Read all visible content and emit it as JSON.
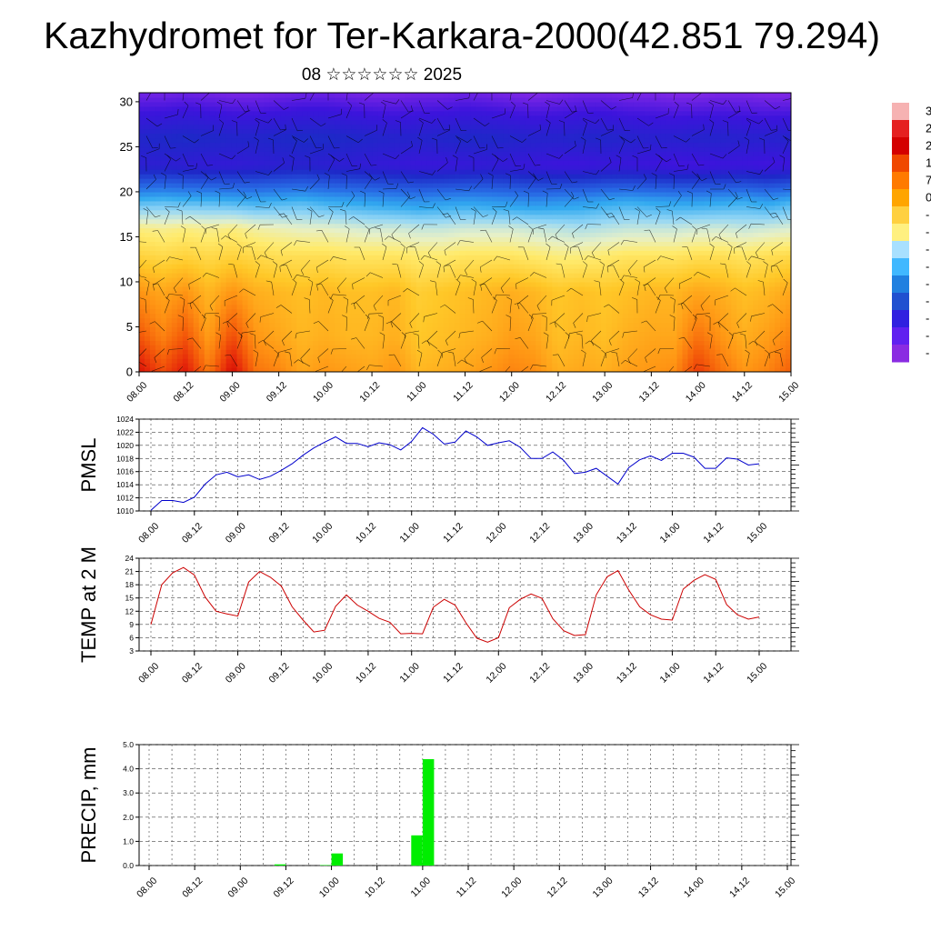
{
  "page": {
    "title": "Kazhydromet for Ter-Karkara-2000(42.851 79.294)",
    "subtitle": "08 ☆☆☆☆☆☆ 2025"
  },
  "chart_data": [
    {
      "type": "heatmap",
      "title": "",
      "ylim": [
        0,
        31
      ],
      "yticks": [
        "0",
        "5",
        "10",
        "15",
        "20",
        "25",
        "30"
      ],
      "xticks": [
        "08.00",
        "08.12",
        "09.00",
        "09.12",
        "10.00",
        "10.12",
        "11.00",
        "11.12",
        "12.00",
        "12.12",
        "13.00",
        "13.12",
        "14.00",
        "14.12",
        "15.00"
      ],
      "overlay": "wind barbs",
      "colorbar": {
        "labels": [
          "3",
          "2",
          "2",
          "1",
          "7",
          "0",
          "-",
          "-",
          "-",
          "-",
          "-",
          "-",
          "-",
          "-",
          "-"
        ],
        "colors": [
          "#f6b2b2",
          "#e52020",
          "#d40000",
          "#f04800",
          "#ff7a00",
          "#ffa500",
          "#ffd040",
          "#fff080",
          "#a8e0ff",
          "#40b8ff",
          "#2080e0",
          "#2050d0",
          "#3020e0",
          "#6020f0",
          "#8a2be2"
        ]
      },
      "rows": [
        {
          "level": 0,
          "values": [
            27,
            20,
            26,
            15,
            28,
            16,
            14,
            10,
            12,
            11,
            10,
            12,
            8,
            9,
            10,
            12,
            14,
            13,
            9,
            10,
            9,
            11,
            12,
            13,
            22,
            16,
            12,
            14,
            18
          ]
        },
        {
          "level": 4,
          "values": [
            19,
            14,
            19,
            11,
            20,
            12,
            10,
            8,
            9,
            8,
            8,
            9,
            6,
            7,
            8,
            9,
            11,
            10,
            7,
            8,
            7,
            9,
            10,
            10,
            16,
            12,
            9,
            11,
            14
          ]
        },
        {
          "level": 9,
          "values": [
            12,
            10,
            12,
            8,
            12,
            9,
            8,
            7,
            8,
            7,
            7,
            8,
            5,
            6,
            7,
            8,
            9,
            8,
            6,
            7,
            6,
            7,
            8,
            8,
            10,
            9,
            7,
            8,
            10
          ]
        },
        {
          "level": 13,
          "values": [
            4,
            3,
            4,
            3,
            4,
            3,
            2,
            2,
            2,
            1,
            1,
            1,
            0,
            0,
            1,
            1,
            1,
            0,
            -1,
            -1,
            0,
            1,
            1,
            1,
            2,
            2,
            1,
            2,
            3
          ]
        },
        {
          "level": 16,
          "values": [
            -1,
            -2,
            -1,
            -2,
            -1,
            -3,
            -4,
            -5,
            -5,
            -6,
            -7,
            -7,
            -8,
            -8,
            -7,
            -7,
            -7,
            -8,
            -9,
            -10,
            -9,
            -8,
            -8,
            -8,
            -7,
            -7,
            -8,
            -7,
            -6
          ]
        },
        {
          "level": 19,
          "values": [
            -18,
            -17,
            -18,
            -18,
            -19,
            -20,
            -19,
            -18,
            -20,
            -21,
            -22,
            -23,
            -24,
            -23,
            -22,
            -23,
            -24,
            -25,
            -24,
            -23,
            -21,
            -20,
            -21,
            -22,
            -22,
            -21,
            -20,
            -22,
            -19
          ]
        },
        {
          "level": 23,
          "values": [
            -50,
            -50,
            -51,
            -52,
            -52,
            -51,
            -50,
            -49,
            -50,
            -51,
            -52,
            -53,
            -54,
            -54,
            -53,
            -52,
            -53,
            -54,
            -55,
            -55,
            -54,
            -54,
            -55,
            -56,
            -56,
            -55,
            -55,
            -56,
            -55
          ]
        },
        {
          "level": 26,
          "values": [
            -46,
            -45,
            -44,
            -45,
            -46,
            -46,
            -45,
            -44,
            -44,
            -45,
            -46,
            -47,
            -47,
            -46,
            -45,
            -45,
            -46,
            -47,
            -47,
            -46,
            -46,
            -47,
            -48,
            -48,
            -47,
            -47,
            -48,
            -48,
            -47
          ]
        },
        {
          "level": 31,
          "values": [
            -62,
            -62,
            -61,
            -62,
            -63,
            -63,
            -62,
            -61,
            -61,
            -62,
            -63,
            -63,
            -62,
            -62,
            -61,
            -62,
            -63,
            -64,
            -63,
            -62,
            -62,
            -63,
            -63,
            -64,
            -64,
            -63,
            -63,
            -64,
            -64
          ]
        }
      ]
    },
    {
      "type": "line",
      "ylabel": "PMSL",
      "ylim": [
        1010,
        1024
      ],
      "yticks": [
        "1010",
        "1012",
        "1014",
        "1016",
        "1018",
        "1020",
        "1022",
        "1024"
      ],
      "xticks": [
        "08.00",
        "08.12",
        "09.00",
        "09.12",
        "10.00",
        "10.12",
        "11.00",
        "11.12",
        "12.00",
        "12.12",
        "13.00",
        "13.12",
        "14.00",
        "14.12",
        "15.00"
      ],
      "x_step_hours": 3,
      "series": [
        {
          "color": "#0000cc",
          "values": [
            1010.1,
            1011.6,
            1011.6,
            1011.3,
            1012.1,
            1014.1,
            1015.5,
            1015.9,
            1015.2,
            1015.5,
            1014.8,
            1015.3,
            1016.2,
            1017.2,
            1018.5,
            1019.6,
            1020.5,
            1021.3,
            1020.3,
            1020.3,
            1019.8,
            1020.4,
            1020.1,
            1019.3,
            1020.6,
            1022.7,
            1021.7,
            1020.2,
            1020.5,
            1022.2,
            1021.3,
            1020.0,
            1020.4,
            1020.7,
            1019.7,
            1018.0,
            1018.0,
            1019.0,
            1017.7,
            1015.7,
            1015.9,
            1016.5,
            1015.3,
            1014.1,
            1016.6,
            1017.8,
            1018.4,
            1017.7,
            1018.8,
            1018.8,
            1018.2,
            1016.5,
            1016.5,
            1018.1,
            1017.9,
            1017.0,
            1017.2
          ]
        }
      ]
    },
    {
      "type": "line",
      "ylabel": "TEMP at 2 M",
      "ylim": [
        3,
        24
      ],
      "yticks": [
        "3",
        "6",
        "9",
        "12",
        "15",
        "18",
        "21",
        "24"
      ],
      "xticks": [
        "08.00",
        "08.12",
        "09.00",
        "09.12",
        "10.00",
        "10.12",
        "11.00",
        "11.12",
        "12.00",
        "12.12",
        "13.00",
        "13.12",
        "14.00",
        "14.12",
        "15.00"
      ],
      "x_step_hours": 3,
      "series": [
        {
          "color": "#cc0000",
          "values": [
            9.0,
            18.0,
            20.7,
            21.9,
            20.2,
            15.2,
            12.0,
            11.4,
            10.9,
            18.6,
            21.0,
            19.7,
            17.7,
            13.0,
            10.0,
            7.3,
            7.7,
            13.1,
            15.7,
            13.4,
            12.0,
            10.4,
            9.5,
            6.9,
            7.0,
            6.9,
            12.9,
            14.7,
            13.4,
            9.4,
            5.9,
            5.0,
            6.0,
            12.8,
            14.7,
            15.9,
            14.9,
            10.3,
            7.6,
            6.5,
            6.7,
            15.7,
            19.8,
            21.2,
            16.8,
            13.0,
            11.2,
            10.2,
            10.0,
            17.0,
            19.0,
            20.3,
            19.2,
            13.5,
            11.2,
            10.2,
            10.7
          ]
        }
      ]
    },
    {
      "type": "bar",
      "ylabel": "PRECIP, mm",
      "ylim": [
        0,
        5
      ],
      "yticks": [
        "0.0",
        "1.0",
        "2.0",
        "3.0",
        "4.0",
        "5.0"
      ],
      "xticks": [
        "08.00",
        "08.12",
        "09.00",
        "09.12",
        "10.00",
        "10.12",
        "11.00",
        "11.12",
        "12.00",
        "12.12",
        "13.00",
        "13.12",
        "14.00",
        "14.12",
        "15.00"
      ],
      "bar_color": "#00ee00",
      "bars": [
        {
          "hour": 36,
          "value": 0.05
        },
        {
          "hour": 48,
          "value": 0.02
        },
        {
          "hour": 51,
          "value": 0.5
        },
        {
          "hour": 72,
          "value": 1.25
        },
        {
          "hour": 75,
          "value": 4.4
        }
      ]
    }
  ]
}
